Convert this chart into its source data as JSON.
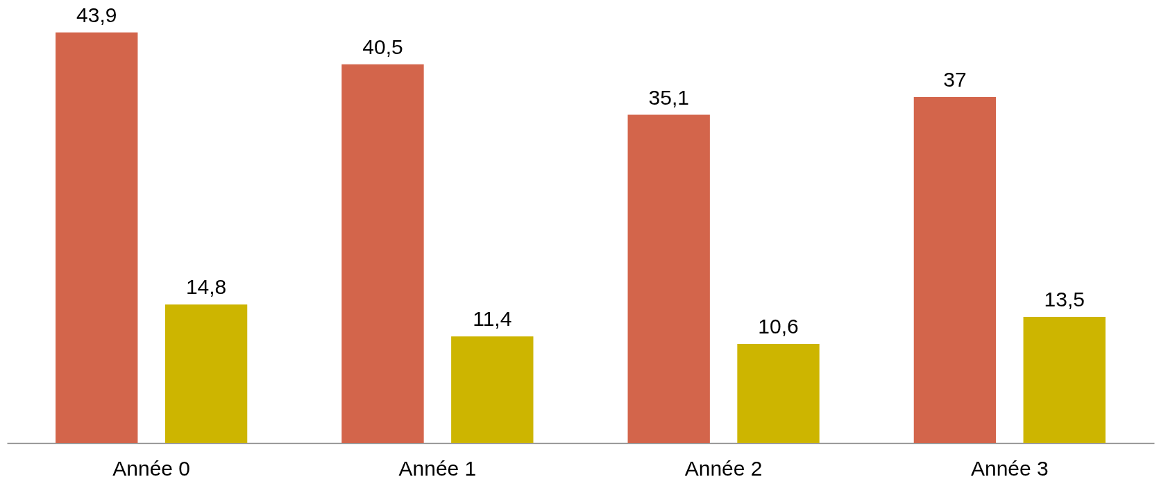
{
  "chart_data": {
    "type": "bar",
    "categories": [
      "Année 0",
      "Année 1",
      "Année 2",
      "Année 3"
    ],
    "series": [
      {
        "color": "#d3654b",
        "values": [
          43.9,
          40.5,
          35.1,
          37
        ],
        "value_labels": [
          "43,9",
          "40,5",
          "35,1",
          "37"
        ]
      },
      {
        "color": "#cdb500",
        "values": [
          14.8,
          11.4,
          10.6,
          13.5
        ],
        "value_labels": [
          "14,8",
          "11,4",
          "10,6",
          "13,5"
        ]
      }
    ],
    "legend": false,
    "grid": false
  }
}
